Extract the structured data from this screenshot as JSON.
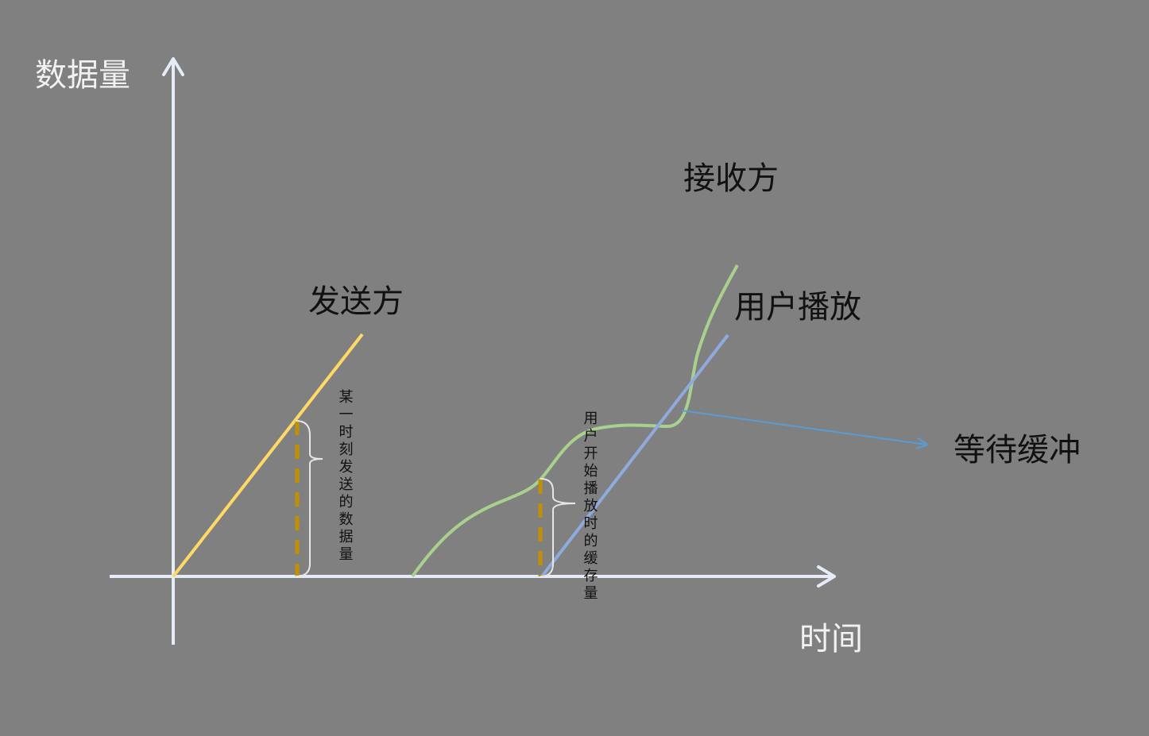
{
  "axes": {
    "y_label": "数据量",
    "x_label": "时间"
  },
  "labels": {
    "sender": "发送方",
    "receiver": "接收方",
    "user_playback": "用户播放",
    "wait_buffer": "等待缓冲"
  },
  "annotations": {
    "sent_at_moment": "某一时刻发送的数据量",
    "buffer_at_play_start": "用户开始播放时的缓存量"
  },
  "colors": {
    "background": "#808080",
    "axis": "#e6ecf7",
    "sender_line": "#ffd966",
    "receiver_curve": "#a9d18e",
    "playback_line": "#8faadc",
    "dashed_marker": "#bf9000",
    "brace": "#e6e6e6",
    "arrow": "#5b9bd5"
  }
}
